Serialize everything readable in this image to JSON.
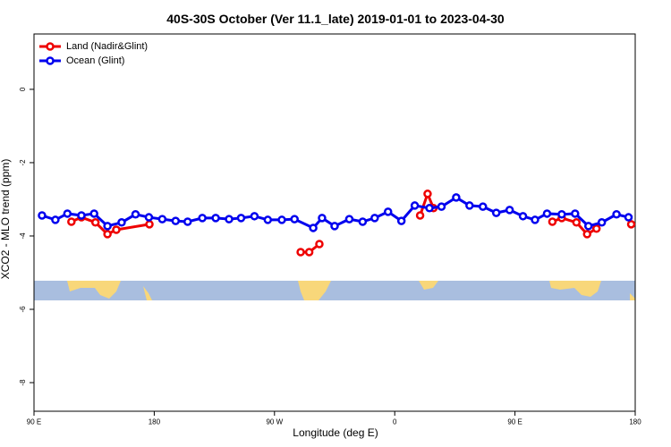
{
  "chart_data": {
    "type": "line",
    "title": "40S-30S October (Ver 11.1_late)   2019-01-01 to 2023-04-30",
    "x_label": "Longitude (deg E)",
    "y_label": "XCO2 - MLO trend (ppm)",
    "xlim": [
      90,
      540
    ],
    "ylim": [
      -8.78,
      1.51
    ],
    "xticks": [
      {
        "value": 90,
        "label": "90 E"
      },
      180,
      {
        "value": 270,
        "label": "90 W"
      },
      {
        "value": 360,
        "label": "0"
      },
      {
        "value": 450,
        "label": "90 E"
      },
      {
        "value": 540,
        "label": "180"
      }
    ],
    "yticks": [
      -8,
      -6,
      -4,
      -2,
      0
    ],
    "legend": "top-left",
    "series": [
      {
        "name": "Land (Nadir&Glint)",
        "color": "#ee0000",
        "x": [
          118,
          125.5,
          136,
          145,
          151.6,
          176.4,
          null,
          289.6,
          296,
          303.6,
          null,
          379,
          384.6,
          389,
          null,
          478,
          485,
          496,
          504,
          511,
          null,
          537
        ],
        "values": [
          -3.61,
          -3.49,
          -3.63,
          -3.95,
          -3.83,
          -3.68,
          null,
          -4.44,
          -4.44,
          -4.22,
          null,
          -3.44,
          -2.85,
          -3.24,
          null,
          -3.61,
          -3.51,
          -3.63,
          -3.95,
          -3.8,
          null,
          -3.68
        ]
      },
      {
        "name": "Ocean (Glint)",
        "color": "#0000ee",
        "x": [
          96,
          106,
          115,
          125.5,
          135,
          145,
          155.6,
          166,
          176,
          186,
          196,
          205,
          216,
          226,
          236,
          245,
          255,
          265,
          275.5,
          285,
          299,
          305.6,
          315,
          326,
          336,
          345,
          355,
          365,
          375,
          386,
          395,
          406,
          416,
          426,
          436,
          446,
          456,
          465,
          474,
          485,
          495,
          505,
          515,
          526,
          535
        ],
        "values": [
          -3.44,
          -3.56,
          -3.39,
          -3.44,
          -3.39,
          -3.73,
          -3.63,
          -3.41,
          -3.49,
          -3.54,
          -3.59,
          -3.61,
          -3.51,
          -3.51,
          -3.54,
          -3.51,
          -3.46,
          -3.56,
          -3.56,
          -3.54,
          -3.78,
          -3.51,
          -3.73,
          -3.54,
          -3.61,
          -3.51,
          -3.34,
          -3.59,
          -3.17,
          -3.24,
          -3.2,
          -2.95,
          -3.17,
          -3.2,
          -3.37,
          -3.29,
          -3.46,
          -3.56,
          -3.39,
          -3.41,
          -3.39,
          -3.73,
          -3.63,
          -3.41,
          -3.49
        ]
      }
    ]
  }
}
